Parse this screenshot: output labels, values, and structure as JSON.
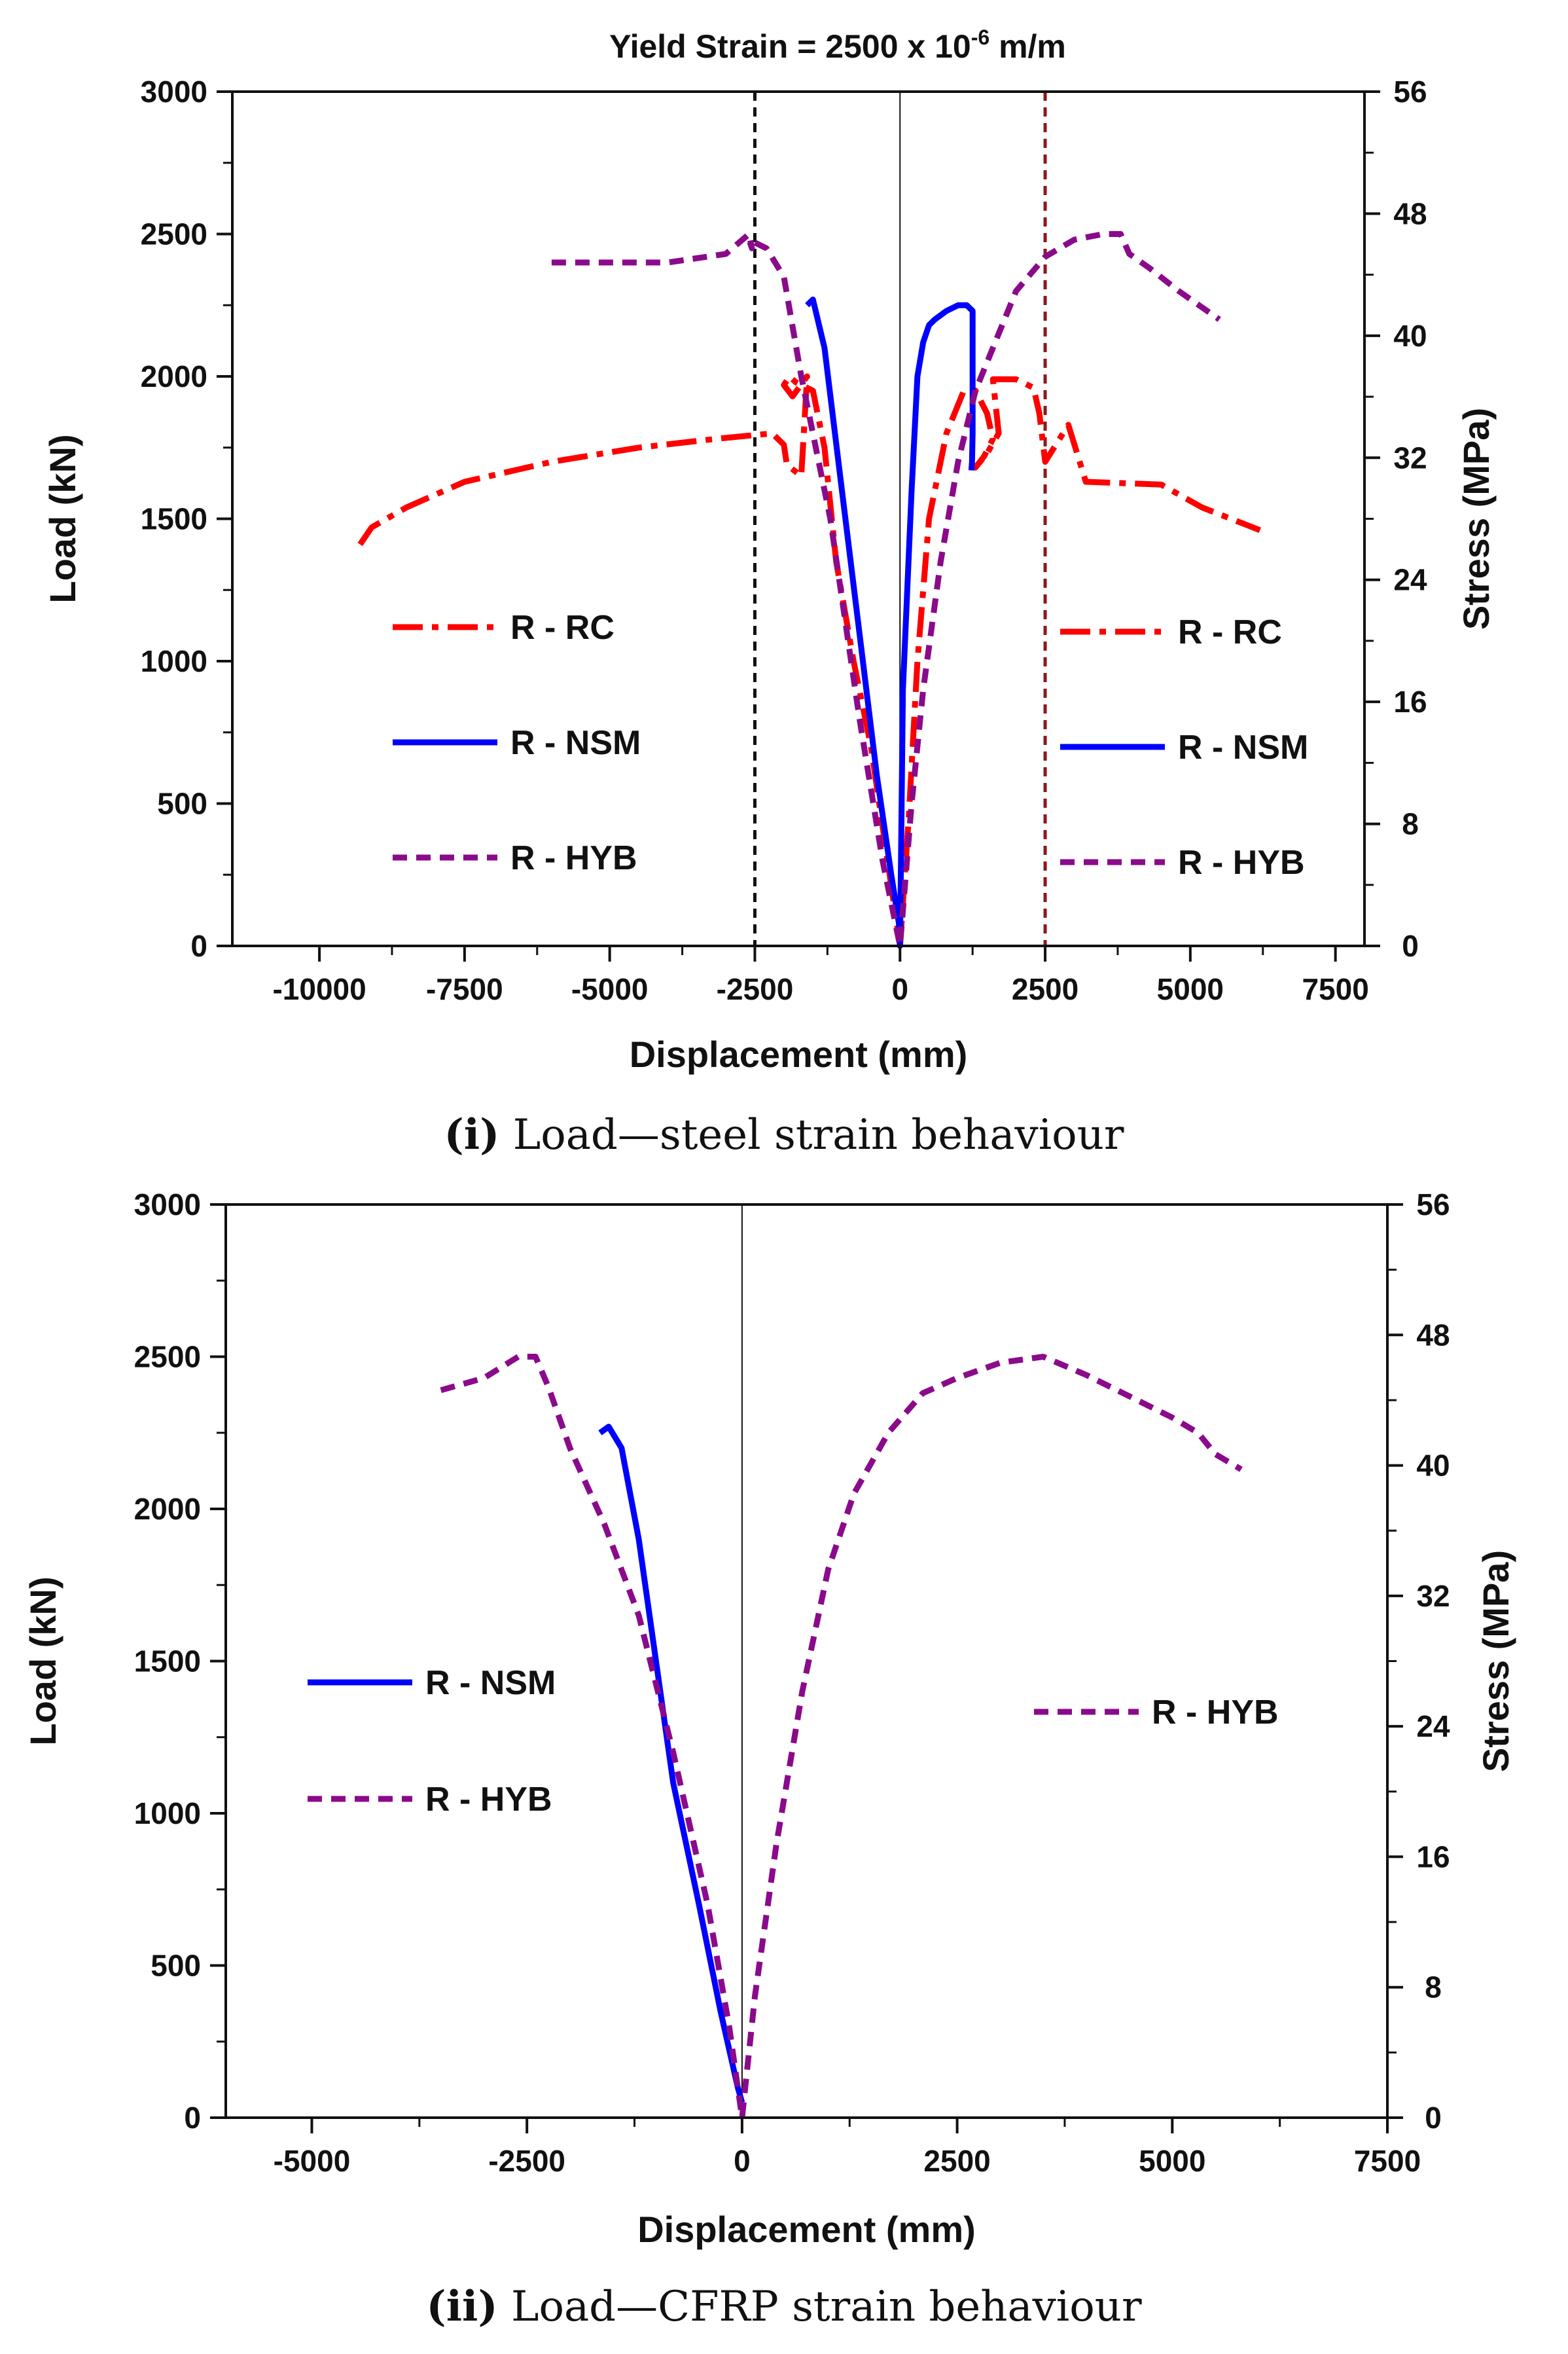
{
  "figure_title": "Yield Strain = 2500 x 10",
  "figure_title_sup": "-6",
  "figure_title_unit": " m/m",
  "colors": {
    "rc": "#ff0000",
    "nsm": "#0000ff",
    "hyb": "#8b0a8b",
    "yield_left": "#111111",
    "yield_right": "#8b1a1a",
    "axis": "#111111"
  },
  "chart_data": [
    {
      "id": "i",
      "type": "line",
      "caption_num": "(i)",
      "caption_text": " Load—steel strain behaviour",
      "xlabel": "Displacement (mm)",
      "ylabel": "Load (kN)",
      "y2label": "Stress (MPa)",
      "xlim": [
        -11500,
        8000
      ],
      "ylim": [
        0,
        3000
      ],
      "y2lim": [
        0,
        56
      ],
      "xticks": [
        -10000,
        -7500,
        -5000,
        -2500,
        0,
        2500,
        5000,
        7500
      ],
      "xtick_labels": [
        "-10000",
        "-7500",
        "-5000",
        "-2500",
        "0",
        "2500",
        "5000",
        "7500"
      ],
      "yticks": [
        0,
        500,
        1000,
        1500,
        2000,
        2500,
        3000
      ],
      "ytick_labels": [
        "0",
        "500",
        "1000",
        "1500",
        "2000",
        "2500",
        "3000"
      ],
      "y2ticks": [
        0,
        8,
        16,
        24,
        32,
        40,
        48,
        56
      ],
      "y2tick_labels": [
        "0",
        "8",
        "16",
        "24",
        "32",
        "40",
        "48",
        "56"
      ],
      "reference_lines": [
        {
          "x": -2500,
          "style": "dashed",
          "color_key": "yield_left"
        },
        {
          "x": 0,
          "style": "solid",
          "color_key": "axis"
        },
        {
          "x": 2500,
          "style": "dashed",
          "color_key": "yield_right"
        }
      ],
      "series": [
        {
          "name": "R - RC",
          "style": "dashdot",
          "color_key": "rc",
          "x": [
            -9300,
            -9100,
            -8500,
            -7500,
            -6000,
            -4500,
            -3200,
            -2200,
            -2000,
            -1950,
            -1700,
            -1600,
            -1850,
            -2000,
            -1900,
            -1800,
            -1500,
            -1300,
            -1100,
            -800,
            -500,
            -250,
            0,
            150,
            300,
            500,
            800,
            1100,
            1300,
            1500,
            1600,
            1450,
            1300,
            1500,
            1700,
            1600,
            2000,
            2300,
            2400,
            2500,
            2900,
            3200,
            4500,
            5200,
            6200
          ],
          "y": [
            1410,
            1470,
            1540,
            1630,
            1700,
            1750,
            1780,
            1800,
            1760,
            1690,
            1650,
            2000,
            1930,
            1970,
            2000,
            1980,
            1950,
            1750,
            1350,
            1000,
            700,
            350,
            0,
            450,
            1000,
            1500,
            1800,
            1950,
            1950,
            1870,
            1780,
            1720,
            1680,
            1730,
            1800,
            1990,
            1990,
            1960,
            1870,
            1700,
            1830,
            1630,
            1620,
            1540,
            1460
          ]
        },
        {
          "name": "R - NSM",
          "style": "solid",
          "color_key": "nsm",
          "x": [
            -1600,
            -1500,
            -1300,
            -1000,
            -700,
            -400,
            -150,
            -20,
            0,
            50,
            200,
            300,
            400,
            500,
            600,
            800,
            1000,
            1150,
            1250,
            1250,
            1250,
            1240,
            1230
          ],
          "y": [
            2250,
            2270,
            2100,
            1600,
            1100,
            600,
            250,
            80,
            0,
            900,
            1600,
            2000,
            2120,
            2180,
            2200,
            2230,
            2250,
            2250,
            2230,
            2000,
            1800,
            1700,
            1670
          ]
        },
        {
          "name": "R - HYB",
          "style": "dashed",
          "color_key": "hyb",
          "x": [
            -6000,
            -5000,
            -4000,
            -3000,
            -2600,
            -2550,
            -2600,
            -2300,
            -2000,
            -1700,
            -1200,
            -700,
            -300,
            0,
            200,
            400,
            700,
            1000,
            1300,
            1600,
            2000,
            2500,
            3000,
            3500,
            3800,
            3950,
            4300,
            4800,
            5500
          ],
          "y": [
            2400,
            2400,
            2400,
            2430,
            2500,
            2450,
            2480,
            2450,
            2350,
            2000,
            1500,
            800,
            300,
            0,
            500,
            900,
            1350,
            1700,
            1950,
            2100,
            2300,
            2420,
            2480,
            2500,
            2500,
            2430,
            2380,
            2300,
            2200
          ]
        }
      ],
      "legends": [
        {
          "side": "left",
          "entries": [
            "R - RC",
            "R - NSM",
            "R - HYB"
          ]
        },
        {
          "side": "right",
          "entries": [
            "R - RC",
            "R - NSM",
            "R - HYB"
          ]
        }
      ]
    },
    {
      "id": "ii",
      "type": "line",
      "caption_num": "(ii)",
      "caption_text": " Load—CFRP strain behaviour",
      "xlabel": "Displacement (mm)",
      "ylabel": "Load (kN)",
      "y2label": "Stress (MPa)",
      "xlim": [
        -6000,
        7500
      ],
      "ylim": [
        0,
        3000
      ],
      "y2lim": [
        0,
        56
      ],
      "xticks": [
        -5000,
        -2500,
        0,
        2500,
        5000,
        7500
      ],
      "xtick_labels": [
        "-5000",
        "-2500",
        "0",
        "2500",
        "5000",
        "7500"
      ],
      "yticks": [
        0,
        500,
        1000,
        1500,
        2000,
        2500,
        3000
      ],
      "ytick_labels": [
        "0",
        "500",
        "1000",
        "1500",
        "2000",
        "2500",
        "3000"
      ],
      "y2ticks": [
        0,
        8,
        16,
        24,
        32,
        40,
        48,
        56
      ],
      "y2tick_labels": [
        "0",
        "8",
        "16",
        "24",
        "32",
        "40",
        "48",
        "56"
      ],
      "reference_lines": [
        {
          "x": 0,
          "style": "solid",
          "color_key": "axis"
        }
      ],
      "series": [
        {
          "name": "R - NSM",
          "style": "solid",
          "color_key": "nsm",
          "x": [
            -1650,
            -1550,
            -1400,
            -1200,
            -1000,
            -800,
            -500,
            -250,
            -50,
            0
          ],
          "y": [
            2250,
            2270,
            2200,
            1900,
            1500,
            1100,
            700,
            350,
            100,
            50
          ]
        },
        {
          "name": "R - HYB",
          "style": "dashed",
          "color_key": "hyb",
          "x": [
            -3500,
            -3000,
            -2600,
            -2400,
            -2250,
            -2000,
            -1600,
            -1200,
            -800,
            -400,
            -150,
            0,
            150,
            400,
            700,
            1000,
            1300,
            1700,
            2100,
            2500,
            3000,
            3500,
            4000,
            4500,
            5000,
            5300,
            5500,
            5800
          ],
          "y": [
            2390,
            2430,
            2500,
            2500,
            2400,
            2200,
            1950,
            1650,
            1200,
            700,
            300,
            0,
            400,
            900,
            1400,
            1800,
            2050,
            2250,
            2380,
            2430,
            2480,
            2500,
            2440,
            2370,
            2300,
            2250,
            2180,
            2130
          ]
        }
      ],
      "legends": [
        {
          "side": "left",
          "entries": [
            "R - NSM",
            "R - HYB"
          ]
        },
        {
          "side": "right",
          "entries": [
            "R - HYB"
          ]
        }
      ]
    }
  ]
}
